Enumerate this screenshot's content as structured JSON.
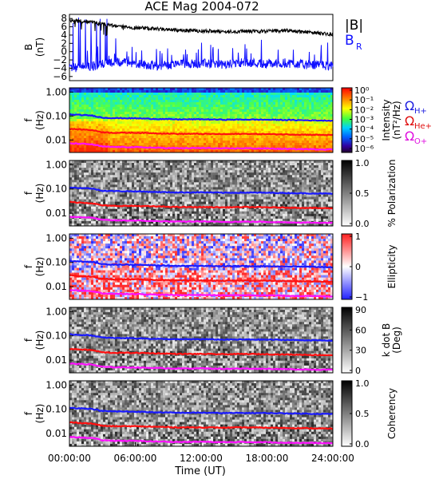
{
  "title": "ACE Mag 2004-072",
  "xlabel": "Time (UT)",
  "x_ticks": [
    "00:00:00",
    "06:00:00",
    "12:00:00",
    "18:00:00",
    "24:00:00"
  ],
  "legend": {
    "b_mag": "|B|",
    "b_r_main": "B",
    "b_r_sub": "R",
    "gyro_symbol": "Ω",
    "h_sub": "H+",
    "he_sub": "He+",
    "o_sub": "O+"
  },
  "colors": {
    "b_mag": "#000000",
    "b_r": "#1010ff",
    "gyro_h": "#1a1aff",
    "gyro_he": "#ff1010",
    "gyro_o": "#ff10ff",
    "legend_h": "#2020e0",
    "legend_he": "#e01010",
    "legend_o": "#e010e0"
  },
  "chart_data": [
    {
      "type": "line",
      "panel": "B",
      "ylabel": "B",
      "yunit": "(nT)",
      "y_ticks": [
        "8",
        "6",
        "4",
        "2",
        "0",
        "−2",
        "−4",
        "−6"
      ],
      "ylim": [
        -7,
        9
      ],
      "x_hours": [
        0,
        2,
        4,
        6,
        8,
        10,
        12,
        14,
        16,
        18,
        20,
        22,
        24
      ],
      "series": [
        {
          "name": "|B|",
          "values": [
            7.5,
            7.2,
            6.2,
            5.8,
            5.5,
            5.2,
            5.0,
            4.8,
            4.9,
            5.0,
            5.1,
            4.6,
            4.2
          ]
        },
        {
          "name": "B_R",
          "values": [
            -4,
            -3.5,
            -2.5,
            -2.8,
            -3.5,
            -3.0,
            -2.8,
            -3.2,
            -2.5,
            -3.0,
            -2.8,
            -3.2,
            -3.5
          ]
        }
      ]
    },
    {
      "type": "heatmap",
      "panel": "intensity",
      "ylabel": "f",
      "yunit": "(Hz)",
      "y_ticks": [
        "1.00",
        "0.10",
        "0.01"
      ],
      "ylim_hz": [
        0.003,
        1.0
      ],
      "log_y": true,
      "colorbar_label": "Intensity",
      "colorbar_unit": "(nT²/Hz)",
      "colorbar_ticks": [
        "10",
        "10",
        "10",
        "10",
        "10",
        "10",
        "10",
        "10"
      ],
      "colorbar_exps": [
        "0",
        "-1",
        "-2",
        "-3",
        "-4",
        "-5",
        "-6",
        ""
      ],
      "colorbar_ticks_shown": [
        "10⁰",
        "10⁻¹",
        "10⁻²",
        "10⁻³",
        "10⁻⁴",
        "10⁻⁵",
        "10⁻⁶"
      ],
      "colormap": "rainbow"
    },
    {
      "type": "heatmap",
      "panel": "polarization",
      "ylabel": "f",
      "yunit": "(Hz)",
      "y_ticks": [
        "1.00",
        "0.10",
        "0.01"
      ],
      "colorbar_label": "% Polarization",
      "colorbar_ticks": [
        "1.0",
        "0.5",
        "0.0"
      ],
      "colormap": "gray"
    },
    {
      "type": "heatmap",
      "panel": "ellipticity",
      "ylabel": "f",
      "yunit": "(Hz)",
      "y_ticks": [
        "1.00",
        "0.10",
        "0.01"
      ],
      "colorbar_label": "Ellipticity",
      "colorbar_ticks": [
        "1",
        "0",
        "−1"
      ],
      "colormap": "red-white-blue"
    },
    {
      "type": "heatmap",
      "panel": "kdotb",
      "ylabel": "f",
      "yunit": "(Hz)",
      "y_ticks": [
        "1.00",
        "0.10",
        "0.01"
      ],
      "colorbar_label": "k dot B",
      "colorbar_unit": "(Deg)",
      "colorbar_ticks": [
        "90",
        "60",
        "30",
        "0"
      ],
      "colormap": "gray"
    },
    {
      "type": "heatmap",
      "panel": "coherency",
      "ylabel": "f",
      "yunit": "(Hz)",
      "y_ticks": [
        "1.00",
        "0.10",
        "0.01"
      ],
      "colorbar_label": "Coherency",
      "colorbar_ticks": [
        "1.0",
        "0.5",
        "0.0"
      ],
      "colormap": "gray"
    }
  ],
  "gyrofrequencies_hz": {
    "x_hours": [
      0,
      2,
      3,
      4,
      6,
      8,
      10,
      12,
      14,
      16,
      18,
      20,
      22,
      24
    ],
    "H+": [
      0.115,
      0.105,
      0.085,
      0.082,
      0.08,
      0.075,
      0.072,
      0.073,
      0.07,
      0.071,
      0.07,
      0.068,
      0.066,
      0.064
    ],
    "He+": [
      0.029,
      0.026,
      0.021,
      0.02,
      0.02,
      0.019,
      0.018,
      0.018,
      0.0175,
      0.018,
      0.0175,
      0.017,
      0.0165,
      0.016
    ],
    "O+": [
      0.0072,
      0.0066,
      0.0053,
      0.0051,
      0.005,
      0.0047,
      0.0045,
      0.0046,
      0.0044,
      0.0045,
      0.0044,
      0.0042,
      0.0041,
      0.004
    ]
  }
}
